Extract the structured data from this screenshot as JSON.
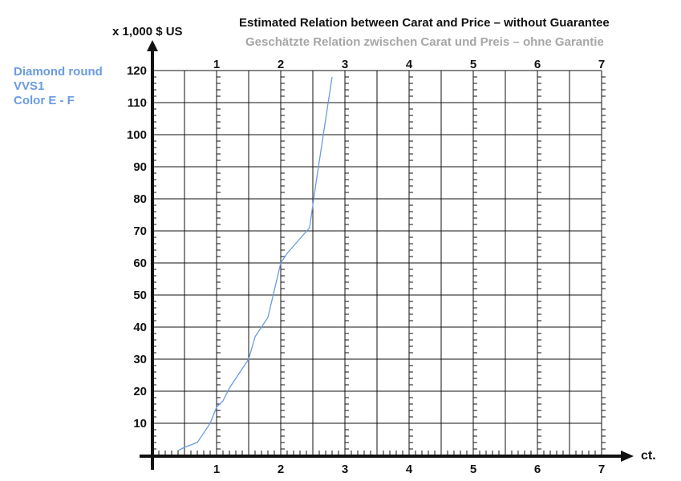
{
  "title": "Estimated Relation between Carat and Price – without Guarantee",
  "subtitle": "Geschätzte Relation zwischen Carat und Preis – ohne Garantie",
  "legend": [
    "Diamond round",
    "VVS1",
    "Color E - F"
  ],
  "colors": {
    "series": "#6a9be0",
    "subtitle": "#a6a6a6",
    "grid": "#111111"
  },
  "chart_data": {
    "type": "line",
    "xlabel": "ct.",
    "ylabel": "x 1,000 $ US",
    "xlim": [
      0,
      7
    ],
    "ylim": [
      0,
      120
    ],
    "x_ticks": [
      "1",
      "2",
      "3",
      "4",
      "5",
      "6",
      "7"
    ],
    "y_ticks": [
      "10",
      "20",
      "30",
      "40",
      "50",
      "60",
      "70",
      "80",
      "90",
      "100",
      "110",
      "120"
    ],
    "grid": true,
    "series": [
      {
        "name": "Diamond round VVS1 Color E - F",
        "x": [
          0.4,
          0.5,
          0.7,
          0.9,
          1.0,
          1.1,
          1.2,
          1.5,
          1.6,
          1.8,
          2.0,
          2.1,
          2.45,
          2.55,
          2.8
        ],
        "y": [
          1.5,
          2.5,
          4,
          10,
          15,
          17,
          21,
          30,
          37,
          43,
          60,
          63,
          71,
          85,
          118
        ]
      }
    ]
  }
}
